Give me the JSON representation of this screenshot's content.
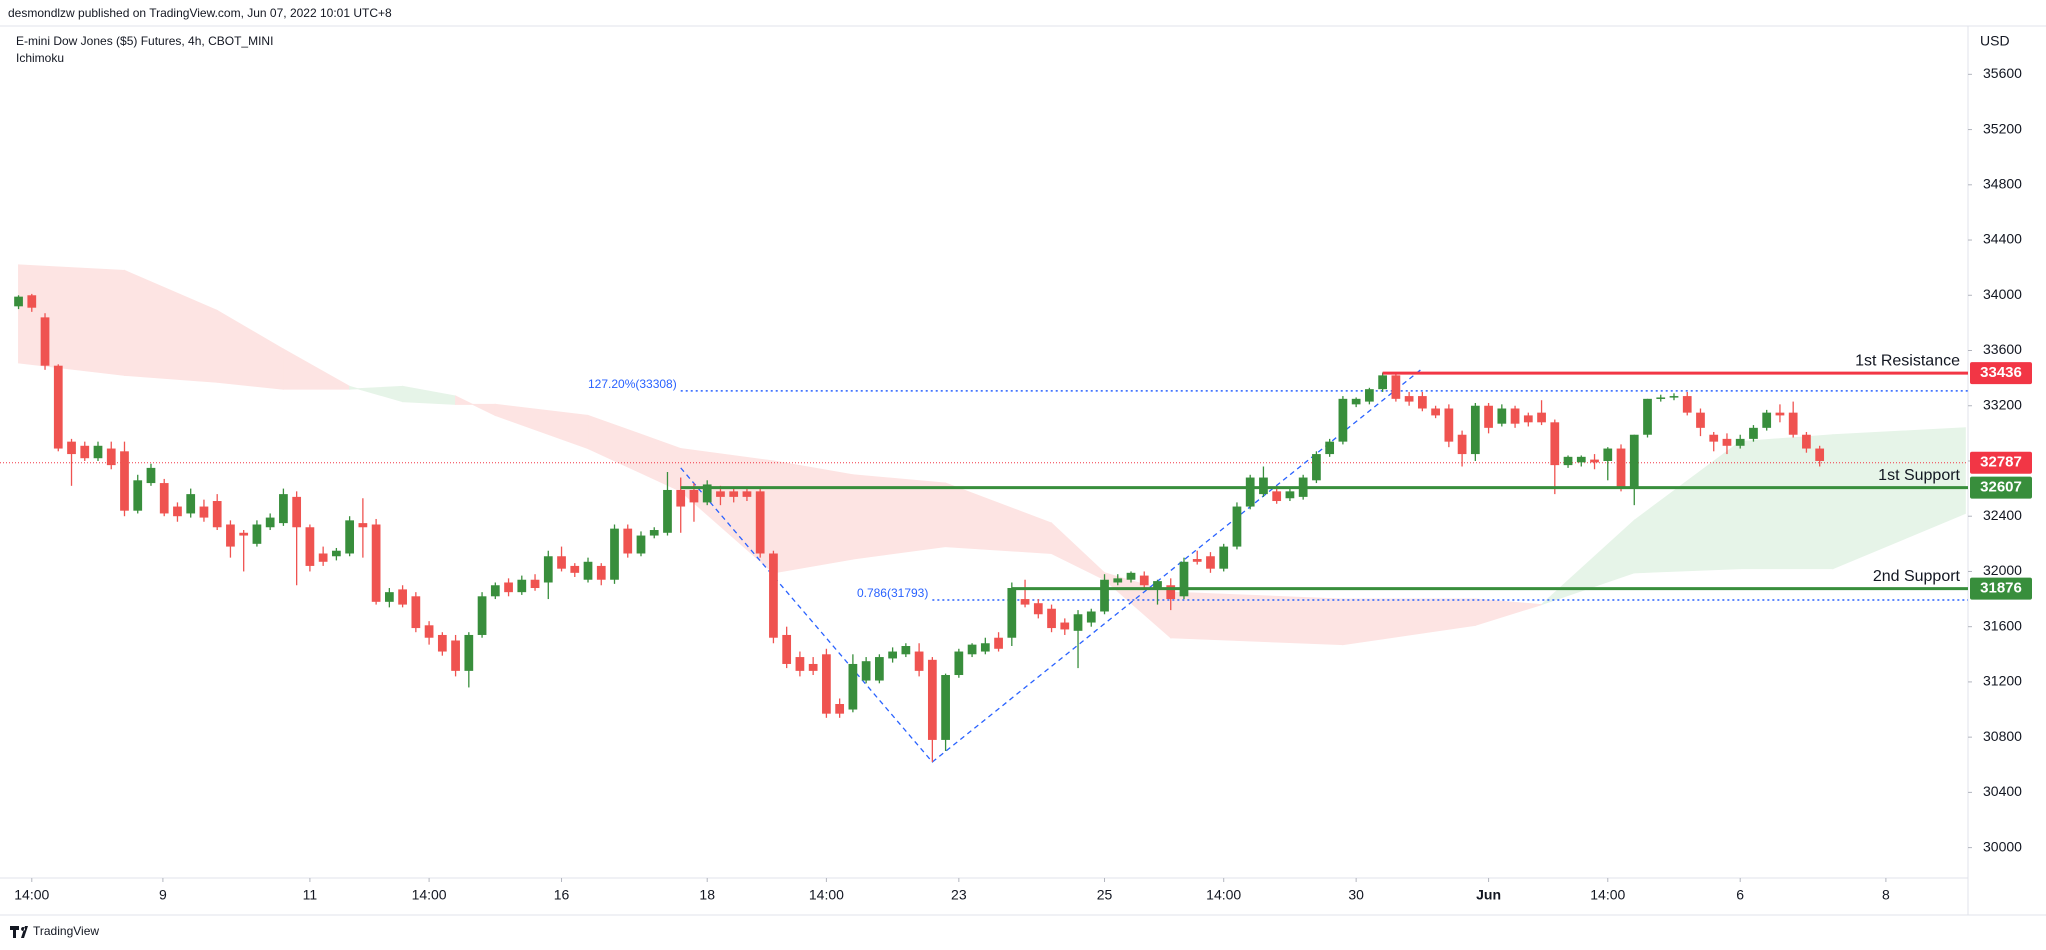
{
  "chart_data": {
    "type": "candlestick",
    "header": "desmondlzw published on TradingView.com, Jun 07, 2022 10:01 UTC+8",
    "title": "E-mini Dow Jones ($5) Futures, 4h, CBOT_MINI",
    "indicator": "Ichimoku",
    "currency": "USD",
    "ylim": [
      29780,
      35950
    ],
    "yticks": [
      30000,
      30400,
      30800,
      31200,
      31600,
      32000,
      32400,
      32800,
      33200,
      33600,
      34000,
      34400,
      34800,
      35200,
      35600
    ],
    "xlim": [
      -1.4,
      147.2
    ],
    "xticks": [
      {
        "value": 1,
        "label": "14:00"
      },
      {
        "value": 10.9,
        "label": "9"
      },
      {
        "value": 22,
        "label": "11"
      },
      {
        "value": 31,
        "label": "14:00"
      },
      {
        "value": 41,
        "label": "16"
      },
      {
        "value": 52,
        "label": "18"
      },
      {
        "value": 61,
        "label": "14:00"
      },
      {
        "value": 71,
        "label": "23"
      },
      {
        "value": 82,
        "label": "25"
      },
      {
        "value": 91,
        "label": "14:00"
      },
      {
        "value": 101,
        "label": "30"
      },
      {
        "value": 111,
        "label": "Jun"
      },
      {
        "value": 120,
        "label": "14:00"
      },
      {
        "value": 130,
        "label": "6"
      },
      {
        "value": 141,
        "label": "8"
      }
    ],
    "up_color": "#388e3c",
    "down_color": "#ef5350",
    "candles": [
      [
        33920,
        34000,
        33900,
        33990
      ],
      [
        34000,
        34010,
        33880,
        33910
      ],
      [
        33840,
        33870,
        33460,
        33490
      ],
      [
        33490,
        33500,
        32870,
        32890
      ],
      [
        32940,
        32960,
        32620,
        32850
      ],
      [
        32910,
        32940,
        32800,
        32820
      ],
      [
        32820,
        32940,
        32800,
        32910
      ],
      [
        32890,
        32940,
        32740,
        32770
      ],
      [
        32870,
        32940,
        32400,
        32440
      ],
      [
        32440,
        32700,
        32420,
        32660
      ],
      [
        32640,
        32780,
        32620,
        32750
      ],
      [
        32640,
        32670,
        32400,
        32420
      ],
      [
        32470,
        32500,
        32360,
        32400
      ],
      [
        32420,
        32600,
        32390,
        32560
      ],
      [
        32470,
        32520,
        32360,
        32390
      ],
      [
        32510,
        32560,
        32300,
        32320
      ],
      [
        32340,
        32370,
        32100,
        32180
      ],
      [
        32280,
        32300,
        32000,
        32260
      ],
      [
        32200,
        32370,
        32180,
        32340
      ],
      [
        32320,
        32420,
        32300,
        32390
      ],
      [
        32350,
        32600,
        32330,
        32560
      ],
      [
        32540,
        32580,
        31900,
        32320
      ],
      [
        32320,
        32340,
        32000,
        32040
      ],
      [
        32130,
        32180,
        32040,
        32070
      ],
      [
        32110,
        32170,
        32080,
        32150
      ],
      [
        32130,
        32400,
        32110,
        32370
      ],
      [
        32350,
        32530,
        32100,
        32320
      ],
      [
        32340,
        32380,
        31760,
        31780
      ],
      [
        31780,
        31880,
        31740,
        31850
      ],
      [
        31870,
        31900,
        31740,
        31760
      ],
      [
        31820,
        31850,
        31560,
        31590
      ],
      [
        31610,
        31640,
        31470,
        31520
      ],
      [
        31540,
        31560,
        31390,
        31420
      ],
      [
        31500,
        31540,
        31240,
        31280
      ],
      [
        31280,
        31560,
        31160,
        31540
      ],
      [
        31540,
        31850,
        31520,
        31820
      ],
      [
        31820,
        31920,
        31800,
        31900
      ],
      [
        31920,
        31950,
        31820,
        31850
      ],
      [
        31850,
        31970,
        31830,
        31940
      ],
      [
        31940,
        31980,
        31860,
        31880
      ],
      [
        31920,
        32150,
        31800,
        32110
      ],
      [
        32110,
        32180,
        32000,
        32020
      ],
      [
        32040,
        32060,
        31960,
        31990
      ],
      [
        31940,
        32100,
        31920,
        32070
      ],
      [
        32040,
        32060,
        31900,
        31940
      ],
      [
        31940,
        32340,
        31910,
        32310
      ],
      [
        32310,
        32340,
        32100,
        32130
      ],
      [
        32130,
        32290,
        32110,
        32260
      ],
      [
        32260,
        32320,
        32240,
        32300
      ],
      [
        32280,
        32720,
        32260,
        32590
      ],
      [
        32590,
        32680,
        32280,
        32470
      ],
      [
        32590,
        32640,
        32360,
        32500
      ],
      [
        32500,
        32660,
        32480,
        32630
      ],
      [
        32580,
        32620,
        32480,
        32540
      ],
      [
        32580,
        32610,
        32500,
        32540
      ],
      [
        32580,
        32600,
        32510,
        32540
      ],
      [
        32580,
        32600,
        32100,
        32130
      ],
      [
        32130,
        32150,
        31480,
        31520
      ],
      [
        31540,
        31600,
        31300,
        31330
      ],
      [
        31380,
        31420,
        31240,
        31280
      ],
      [
        31330,
        31380,
        31250,
        31280
      ],
      [
        31400,
        31440,
        30940,
        30970
      ],
      [
        31040,
        31080,
        30940,
        30970
      ],
      [
        31000,
        31400,
        30980,
        31330
      ],
      [
        31210,
        31380,
        31190,
        31350
      ],
      [
        31210,
        31400,
        31190,
        31380
      ],
      [
        31370,
        31450,
        31340,
        31420
      ],
      [
        31400,
        31480,
        31380,
        31460
      ],
      [
        31420,
        31480,
        31240,
        31280
      ],
      [
        31360,
        31380,
        30620,
        30780
      ],
      [
        30780,
        31260,
        30700,
        31250
      ],
      [
        31250,
        31440,
        31230,
        31420
      ],
      [
        31400,
        31480,
        31380,
        31470
      ],
      [
        31420,
        31520,
        31400,
        31480
      ],
      [
        31520,
        31560,
        31420,
        31440
      ],
      [
        31520,
        31920,
        31460,
        31880
      ],
      [
        31800,
        31940,
        31740,
        31760
      ],
      [
        31770,
        31800,
        31660,
        31690
      ],
      [
        31730,
        31760,
        31560,
        31590
      ],
      [
        31630,
        31660,
        31540,
        31580
      ],
      [
        31570,
        31720,
        31300,
        31690
      ],
      [
        31630,
        31730,
        31600,
        31710
      ],
      [
        31710,
        31980,
        31690,
        31940
      ],
      [
        31920,
        31980,
        31900,
        31950
      ],
      [
        31940,
        32000,
        31920,
        31990
      ],
      [
        31970,
        32000,
        31880,
        31900
      ],
      [
        31880,
        31940,
        31760,
        31930
      ],
      [
        31900,
        31950,
        31720,
        31800
      ],
      [
        31820,
        32100,
        31800,
        32070
      ],
      [
        32090,
        32150,
        32050,
        32070
      ],
      [
        32110,
        32140,
        31990,
        32020
      ],
      [
        32020,
        32200,
        32000,
        32180
      ],
      [
        32180,
        32500,
        32160,
        32470
      ],
      [
        32470,
        32700,
        32450,
        32680
      ],
      [
        32560,
        32760,
        32540,
        32680
      ],
      [
        32580,
        32620,
        32490,
        32510
      ],
      [
        32530,
        32600,
        32510,
        32580
      ],
      [
        32540,
        32700,
        32520,
        32680
      ],
      [
        32660,
        32870,
        32640,
        32850
      ],
      [
        32850,
        32960,
        32830,
        32940
      ],
      [
        32940,
        33270,
        32920,
        33250
      ],
      [
        33210,
        33260,
        33190,
        33250
      ],
      [
        33230,
        33330,
        33210,
        33320
      ],
      [
        33320,
        33440,
        33300,
        33420
      ],
      [
        33420,
        33440,
        33230,
        33250
      ],
      [
        33270,
        33300,
        33200,
        33230
      ],
      [
        33270,
        33300,
        33160,
        33180
      ],
      [
        33180,
        33200,
        33110,
        33130
      ],
      [
        33180,
        33210,
        32900,
        32940
      ],
      [
        32990,
        33020,
        32760,
        32850
      ],
      [
        32850,
        33220,
        32800,
        33200
      ],
      [
        33200,
        33220,
        33000,
        33040
      ],
      [
        33070,
        33210,
        33050,
        33180
      ],
      [
        33180,
        33200,
        33040,
        33070
      ],
      [
        33130,
        33150,
        33050,
        33080
      ],
      [
        33150,
        33240,
        33060,
        33080
      ],
      [
        33080,
        33100,
        32560,
        32770
      ],
      [
        32770,
        32840,
        32750,
        32830
      ],
      [
        32790,
        32840,
        32760,
        32830
      ],
      [
        32810,
        32850,
        32740,
        32790
      ],
      [
        32800,
        32900,
        32660,
        32890
      ],
      [
        32890,
        32920,
        32580,
        32610
      ],
      [
        32610,
        32990,
        32480,
        32990
      ],
      [
        32990,
        33250,
        32970,
        33250
      ],
      [
        33250,
        33280,
        33230,
        33260
      ],
      [
        33260,
        33290,
        33240,
        33270
      ],
      [
        33270,
        33300,
        33130,
        33150
      ],
      [
        33150,
        33180,
        32980,
        33040
      ],
      [
        32990,
        33010,
        32870,
        32940
      ],
      [
        32960,
        33000,
        32850,
        32910
      ],
      [
        32910,
        32990,
        32890,
        32960
      ],
      [
        32960,
        33060,
        32940,
        33040
      ],
      [
        33040,
        33170,
        33020,
        33150
      ],
      [
        33150,
        33210,
        33080,
        33130
      ],
      [
        33150,
        33230,
        32970,
        32990
      ],
      [
        32990,
        33010,
        32860,
        32890
      ],
      [
        32890,
        32910,
        32760,
        32800
      ]
    ],
    "cloud": {
      "up_color": "#e6f4e8",
      "down_color": "#fde4e3",
      "x": [
        0,
        8,
        15,
        20,
        25,
        29,
        33,
        36,
        43,
        50,
        57,
        63,
        70,
        78,
        82,
        87,
        100,
        110,
        115,
        122,
        130,
        137,
        147
      ],
      "span_a": [
        33510,
        33420,
        33370,
        33320,
        33320,
        33340,
        33270,
        33130,
        32890,
        32580,
        31990,
        32090,
        32180,
        32130,
        31940,
        31520,
        31470,
        31610,
        31760,
        32370,
        32940,
        32990,
        33040
      ],
      "span_b": [
        34220,
        34180,
        33890,
        33610,
        33340,
        33230,
        33210,
        33210,
        33130,
        32890,
        32800,
        32700,
        32640,
        32350,
        31990,
        31850,
        31800,
        31800,
        31760,
        31990,
        32020,
        32020,
        32420
      ]
    },
    "last_price": {
      "value": 32787,
      "color": "#f23645"
    },
    "levels": [
      {
        "name": "1st Resistance",
        "value": 33436,
        "color": "#f23645",
        "start": 103
      },
      {
        "name": "1st Support",
        "value": 32607,
        "color": "#388e3c",
        "start": 50
      },
      {
        "name": "2nd Support",
        "value": 31876,
        "color": "#388e3c",
        "start": 75
      }
    ],
    "fib_lines": [
      {
        "label": "127.20%(33308)",
        "value": 33308,
        "start": 50
      },
      {
        "label": "0.786(31793)",
        "value": 31793,
        "start": 69
      }
    ],
    "zigzag": {
      "x": [
        50,
        69,
        106
      ],
      "y": [
        32750,
        30620,
        33470
      ],
      "color": "#2962ff"
    }
  },
  "footer": "TradingView"
}
